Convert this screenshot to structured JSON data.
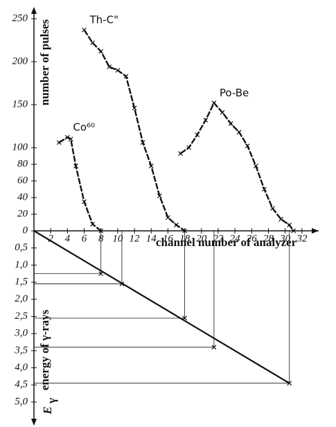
{
  "chart_data": {
    "type": "line",
    "xlabel": "channel number of analyzer",
    "ylabel": "number of pulses",
    "y2label": "energy of γ-rays",
    "y2symbol": {
      "base": "E",
      "sub": "γ"
    },
    "xlim": [
      0,
      34
    ],
    "xticks": [
      2,
      4,
      6,
      8,
      10,
      12,
      14,
      16,
      18,
      20,
      22,
      24,
      26,
      28,
      30,
      32
    ],
    "ylim": [
      0,
      250
    ],
    "yticks": [
      0,
      20,
      40,
      60,
      80,
      100,
      150,
      200,
      250
    ],
    "y2lim": [
      0,
      5.0
    ],
    "y2ticks": [
      {
        "value": 0.5,
        "label": "0,5"
      },
      {
        "value": 1.0,
        "label": "1,0"
      },
      {
        "value": 1.5,
        "label": "1,5"
      },
      {
        "value": 2.0,
        "label": "2,0"
      },
      {
        "value": 2.5,
        "label": "2,5"
      },
      {
        "value": 3.0,
        "label": "3,0"
      },
      {
        "value": 3.5,
        "label": "3,5"
      },
      {
        "value": 4.0,
        "label": "4,0"
      },
      {
        "value": 4.5,
        "label": "4,5"
      },
      {
        "value": 5.0,
        "label": "5,0"
      }
    ],
    "color": "#111111",
    "series": [
      {
        "name": "Co⁶⁰",
        "x": [
          3,
          4,
          4.4,
          5,
          6,
          7,
          8
        ],
        "values": [
          106,
          112,
          110,
          78,
          35,
          8,
          0
        ]
      },
      {
        "name": "Th-C\"",
        "x": [
          6,
          7,
          8,
          9,
          10,
          11,
          12,
          13,
          14,
          15,
          16,
          17,
          18
        ],
        "values": [
          237,
          222,
          212,
          194,
          190,
          183,
          146,
          106,
          78,
          42,
          16,
          7,
          0
        ]
      },
      {
        "name": "Po-Be",
        "x": [
          17.5,
          18.5,
          19.5,
          20.5,
          21.5,
          22.5,
          23.5,
          24.5,
          25.5,
          26.5,
          27.5,
          28.5,
          29.5,
          30.5,
          31
        ],
        "values": [
          93,
          100,
          115,
          132,
          152,
          141,
          128,
          118,
          102,
          78,
          50,
          27,
          14,
          7,
          0
        ]
      }
    ],
    "calibration": {
      "x": [
        0,
        30.5
      ],
      "values": [
        0,
        4.45
      ],
      "axis": "y2"
    },
    "calibration_points": {
      "x": [
        8,
        10.5,
        18,
        21.5,
        30.5
      ],
      "values": [
        1.25,
        1.55,
        2.55,
        3.4,
        4.45
      ],
      "axis": "y2"
    }
  }
}
